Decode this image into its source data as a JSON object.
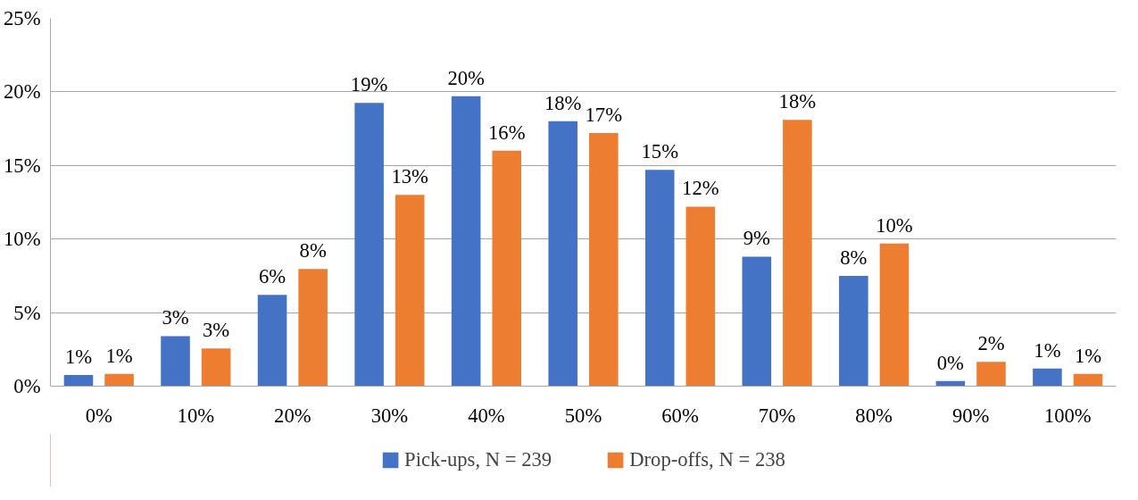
{
  "chart_data": {
    "type": "bar",
    "categories": [
      "0%",
      "10%",
      "20%",
      "30%",
      "40%",
      "50%",
      "60%",
      "70%",
      "80%",
      "90%",
      "100%"
    ],
    "series": [
      {
        "name": "Pick-ups, N = 239",
        "color": "#4472c4",
        "values": [
          0.76,
          3.4,
          6.2,
          19.25,
          19.7,
          18.0,
          14.7,
          8.8,
          7.5,
          0.35,
          1.2
        ],
        "value_labels": [
          "1%",
          "3%",
          "6%",
          "19%",
          "20%",
          "18%",
          "15%",
          "9%",
          "8%",
          "0%",
          "1%"
        ]
      },
      {
        "name": "Drop-offs, N = 238",
        "color": "#ed7d31",
        "values": [
          0.83,
          2.56,
          7.96,
          13.0,
          16.0,
          17.2,
          12.2,
          18.1,
          9.7,
          1.66,
          0.83
        ],
        "value_labels": [
          "1%",
          "3%",
          "8%",
          "13%",
          "16%",
          "17%",
          "12%",
          "18%",
          "10%",
          "2%",
          "1%"
        ]
      }
    ],
    "ylim": [
      0,
      25
    ],
    "yticks": [
      {
        "value": 0,
        "label": "0%"
      },
      {
        "value": 5,
        "label": "5%"
      },
      {
        "value": 10,
        "label": "10%"
      },
      {
        "value": 15,
        "label": "15%"
      },
      {
        "value": 20,
        "label": "20%"
      },
      {
        "value": 25,
        "label": "25%"
      }
    ],
    "grid": "y",
    "legend": "bottom"
  }
}
